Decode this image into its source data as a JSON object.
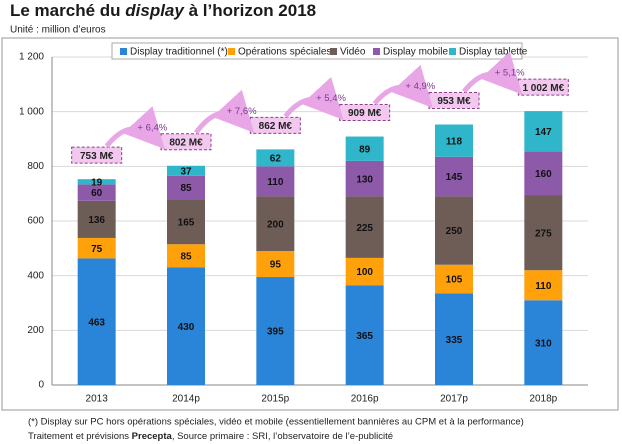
{
  "chart_data": {
    "type": "stacked_bar",
    "title_parts": [
      "Le marché du ",
      "display",
      " à l’horizon 2018"
    ],
    "subtitle": "Unité : million d’euros",
    "categories": [
      "2013",
      "2014p",
      "2015p",
      "2016p",
      "2017p",
      "2018p"
    ],
    "series": [
      {
        "name": "Display traditionnel (*)",
        "color": "#2a84d8",
        "values": [
          463,
          430,
          395,
          365,
          335,
          310
        ]
      },
      {
        "name": "Opérations spéciales",
        "color": "#ffa10a",
        "values": [
          75,
          85,
          95,
          100,
          105,
          110
        ]
      },
      {
        "name": "Vidéo",
        "color": "#6e5c57",
        "values": [
          136,
          165,
          200,
          225,
          250,
          275
        ]
      },
      {
        "name": "Display mobile",
        "color": "#8d5aa9",
        "values": [
          60,
          85,
          110,
          130,
          145,
          160
        ]
      },
      {
        "name": "Display tablette",
        "color": "#2fb6ca",
        "values": [
          19,
          37,
          62,
          89,
          118,
          147
        ]
      }
    ],
    "totals": {
      "values": [
        753,
        802,
        862,
        909,
        953,
        1002
      ],
      "value_labels": [
        "753 M€",
        "802 M€",
        "862 M€",
        "909 M€",
        "953 M€",
        "1 002 M€"
      ]
    },
    "growth_labels": [
      "+ 6,4%",
      "+ 7,6%",
      "+ 5,4%",
      "+ 4,9%",
      "+ 5,1%"
    ],
    "ylim": [
      0,
      1200
    ],
    "yticks": [
      0,
      200,
      400,
      600,
      800,
      {
        "value": 1000,
        "label": "1 000"
      },
      {
        "value": 1200,
        "label": "1 200"
      }
    ],
    "grid": true,
    "footnote": "(*) Display sur PC hors opérations spéciales, vidéo et mobile (essentiellement bannières au CPM et à la performance)",
    "source_parts": [
      "Traitement et prévisions ",
      "Precepta",
      ", Source primaire : SRI, l’observatoire de l’e-publicité"
    ]
  }
}
